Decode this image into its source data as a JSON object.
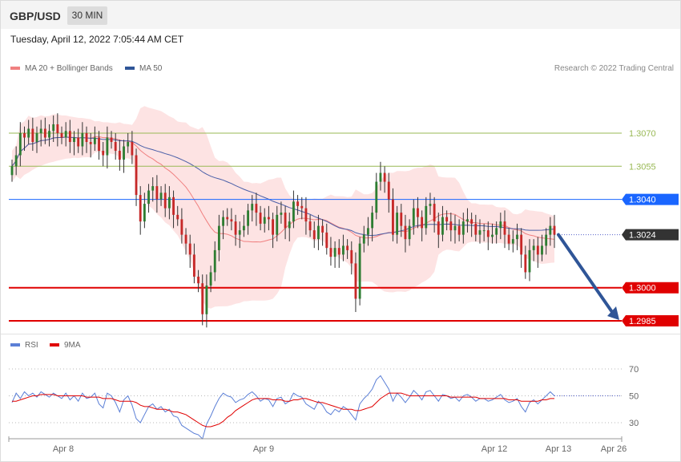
{
  "header": {
    "symbol": "GBP/USD",
    "timeframe": "30 MIN"
  },
  "timestamp": "Tuesday, April 12, 2022 7:05:44 AM CET",
  "legend": {
    "items": [
      {
        "label": "MA 20 + Bollinger Bands",
        "color": "#f08080"
      },
      {
        "label": "MA 50",
        "color": "#2f5597"
      }
    ],
    "credit": "Research © 2022 Trading Central"
  },
  "rsi_legend": {
    "items": [
      {
        "label": "RSI",
        "color": "#5b7fd6"
      },
      {
        "label": "9MA",
        "color": "#e00000"
      }
    ]
  },
  "chart_data": [
    {
      "type": "candlestick",
      "title": "GBP/USD 30 MIN",
      "ylim": [
        1.2985,
        1.3085
      ],
      "levels": [
        {
          "value": 1.307,
          "label": "1.3070",
          "color": "#99b955",
          "style": "resistance"
        },
        {
          "value": 1.3055,
          "label": "1.3055",
          "color": "#99b955",
          "style": "resistance"
        },
        {
          "value": 1.304,
          "label": "1.3040",
          "color": "#1a66ff",
          "style": "pivot"
        },
        {
          "value": 1.3024,
          "label": "1.3024",
          "color": "#333333",
          "style": "last-price"
        },
        {
          "value": 1.3,
          "label": "1.3000",
          "color": "#e00000",
          "style": "target"
        },
        {
          "value": 1.2985,
          "label": "1.2985",
          "color": "#e00000",
          "style": "target"
        }
      ],
      "ohlc_close": [
        1.3055,
        1.306,
        1.307,
        1.3068,
        1.3072,
        1.3066,
        1.307,
        1.3072,
        1.3068,
        1.3071,
        1.3074,
        1.307,
        1.3068,
        1.3071,
        1.3066,
        1.3068,
        1.3064,
        1.307,
        1.3066,
        1.3065,
        1.3068,
        1.3062,
        1.306,
        1.3068,
        1.3066,
        1.3062,
        1.3058,
        1.3064,
        1.3066,
        1.306,
        1.3042,
        1.303,
        1.3038,
        1.3044,
        1.3046,
        1.304,
        1.3043,
        1.3036,
        1.3041,
        1.3033,
        1.3031,
        1.3024,
        1.302,
        1.3015,
        1.3005,
        1.3002,
        1.2988,
        1.3001,
        1.3007,
        1.3017,
        1.3028,
        1.3032,
        1.3031,
        1.303,
        1.3024,
        1.3026,
        1.3028,
        1.3035,
        1.3038,
        1.3034,
        1.3029,
        1.3032,
        1.3031,
        1.3024,
        1.3033,
        1.3034,
        1.3027,
        1.303,
        1.3039,
        1.3037,
        1.3036,
        1.303,
        1.3026,
        1.3022,
        1.3028,
        1.3025,
        1.3018,
        1.3014,
        1.3018,
        1.3015,
        1.3019,
        1.3017,
        1.3011,
        1.2995,
        1.302,
        1.3024,
        1.3027,
        1.3034,
        1.3048,
        1.3052,
        1.3048,
        1.304,
        1.3024,
        1.3034,
        1.3028,
        1.3022,
        1.3028,
        1.3036,
        1.3032,
        1.3027,
        1.3037,
        1.3038,
        1.303,
        1.3024,
        1.3032,
        1.303,
        1.3026,
        1.3028,
        1.3024,
        1.303,
        1.3031,
        1.3029,
        1.3024,
        1.3026,
        1.3026,
        1.3023,
        1.3024,
        1.3027,
        1.303,
        1.3024,
        1.302,
        1.3022,
        1.3024,
        1.3015,
        1.3007,
        1.3017,
        1.3019,
        1.3015,
        1.3019,
        1.3024,
        1.3028,
        1.3024
      ],
      "forecast_arrow": {
        "from": 1.3024,
        "to": 1.2985
      },
      "x_ticks": [
        "Apr 8",
        "Apr 9",
        "Apr 12",
        "Apr 13",
        "Apr 26"
      ]
    },
    {
      "type": "line",
      "title": "RSI",
      "ylim": [
        20,
        80
      ],
      "y_ticks": [
        70,
        50,
        30
      ],
      "series": [
        {
          "name": "RSI",
          "values": [
            45,
            52,
            48,
            53,
            50,
            52,
            49,
            53,
            51,
            49,
            52,
            50,
            48,
            52,
            47,
            50,
            46,
            52,
            48,
            49,
            52,
            44,
            41,
            52,
            50,
            45,
            38,
            47,
            50,
            43,
            33,
            30,
            36,
            42,
            44,
            40,
            42,
            38,
            40,
            35,
            34,
            28,
            26,
            24,
            22,
            21,
            18,
            29,
            35,
            42,
            48,
            52,
            50,
            49,
            45,
            47,
            48,
            51,
            53,
            50,
            46,
            48,
            47,
            42,
            48,
            49,
            44,
            46,
            52,
            50,
            49,
            44,
            42,
            40,
            46,
            43,
            38,
            36,
            40,
            38,
            42,
            40,
            36,
            32,
            44,
            48,
            51,
            55,
            62,
            65,
            60,
            55,
            46,
            52,
            49,
            45,
            49,
            54,
            51,
            47,
            53,
            54,
            50,
            46,
            51,
            50,
            48,
            49,
            46,
            50,
            51,
            49,
            46,
            48,
            48,
            46,
            47,
            49,
            51,
            47,
            45,
            46,
            48,
            42,
            38,
            45,
            47,
            44,
            47,
            50,
            53,
            50
          ]
        },
        {
          "name": "9MA",
          "values": [
            46,
            46,
            47,
            48,
            49,
            50,
            50,
            51,
            51,
            51,
            51,
            50,
            50,
            50,
            50,
            50,
            50,
            50,
            49,
            49,
            49,
            49,
            48,
            48,
            48,
            47,
            46,
            46,
            46,
            46,
            45,
            43,
            42,
            42,
            41,
            40,
            40,
            40,
            39,
            38,
            38,
            37,
            36,
            34,
            32,
            30,
            28,
            27,
            27,
            28,
            29,
            31,
            34,
            36,
            39,
            41,
            43,
            45,
            47,
            48,
            48,
            48,
            48,
            47,
            47,
            47,
            46,
            46,
            47,
            47,
            48,
            48,
            47,
            46,
            45,
            45,
            44,
            43,
            42,
            41,
            40,
            40,
            40,
            39,
            39,
            40,
            41,
            42,
            45,
            48,
            50,
            52,
            52,
            52,
            52,
            51,
            50,
            50,
            50,
            50,
            50,
            50,
            50,
            50,
            50,
            50,
            49,
            49,
            49,
            49,
            49,
            49,
            49,
            48,
            48,
            48,
            48,
            48,
            48,
            48,
            47,
            47,
            47,
            46,
            46,
            46,
            46,
            46,
            47,
            47,
            48,
            48
          ]
        }
      ],
      "x_ticks": [
        "Apr 8",
        "Apr 9",
        "Apr 12",
        "Apr 13",
        "Apr 26"
      ]
    }
  ]
}
